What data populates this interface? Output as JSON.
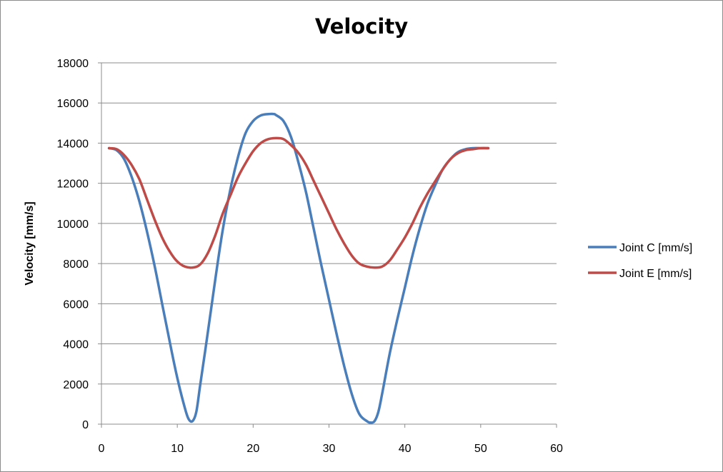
{
  "chart_data": {
    "type": "line",
    "title": "Velocity",
    "xlabel": "",
    "ylabel": "Velocity [mm/s]",
    "xlim": [
      0,
      60
    ],
    "ylim": [
      0,
      18000
    ],
    "x_ticks": [
      0,
      10,
      20,
      30,
      40,
      50,
      60
    ],
    "y_ticks": [
      0,
      2000,
      4000,
      6000,
      8000,
      10000,
      12000,
      14000,
      16000,
      18000
    ],
    "grid": "horizontal",
    "legend_position": "right",
    "series": [
      {
        "name": "Joint C [mm/s]",
        "color": "#4a7ebb",
        "x": [
          1,
          2,
          3,
          4,
          5,
          6,
          7,
          8,
          9,
          10,
          11,
          11.5,
          12,
          12.5,
          13,
          14,
          15,
          16,
          17,
          18,
          19,
          20,
          21,
          22,
          22.7,
          23,
          24,
          25,
          26,
          27,
          28,
          29,
          30,
          31,
          32,
          33,
          34,
          35,
          35.5,
          36,
          36.5,
          37,
          38,
          39,
          40,
          41,
          42,
          43,
          44,
          45,
          46,
          47,
          48,
          49,
          50,
          51
        ],
        "y": [
          13750,
          13650,
          13200,
          12300,
          11100,
          9600,
          7900,
          6000,
          4100,
          2300,
          800,
          250,
          150,
          600,
          1900,
          4500,
          7200,
          9700,
          11700,
          13300,
          14500,
          15100,
          15380,
          15450,
          15450,
          15400,
          15100,
          14300,
          13000,
          11500,
          9700,
          7900,
          6200,
          4500,
          2900,
          1500,
          500,
          150,
          80,
          150,
          600,
          1500,
          3500,
          5200,
          6800,
          8400,
          9800,
          11000,
          11900,
          12700,
          13200,
          13550,
          13700,
          13750,
          13750,
          13750
        ]
      },
      {
        "name": "Joint E [mm/s]",
        "color": "#be4b48",
        "x": [
          1,
          2,
          3,
          4,
          5,
          6,
          7,
          8,
          9,
          10,
          11,
          12,
          13,
          14,
          15,
          16,
          17,
          18,
          19,
          20,
          21,
          22,
          23,
          24,
          25,
          26,
          27,
          28,
          29,
          30,
          31,
          32,
          33,
          34,
          35,
          36,
          37,
          38,
          39,
          40,
          41,
          42,
          43,
          44,
          45,
          46,
          47,
          48,
          49,
          50,
          51
        ],
        "y": [
          13750,
          13700,
          13400,
          12900,
          12200,
          11200,
          10200,
          9300,
          8600,
          8100,
          7850,
          7800,
          7950,
          8500,
          9400,
          10500,
          11400,
          12300,
          13000,
          13600,
          14000,
          14200,
          14250,
          14200,
          13900,
          13500,
          12900,
          12100,
          11300,
          10500,
          9700,
          9000,
          8400,
          8000,
          7850,
          7800,
          7850,
          8150,
          8700,
          9300,
          10000,
          10800,
          11500,
          12100,
          12700,
          13200,
          13500,
          13650,
          13700,
          13750,
          13750
        ]
      }
    ]
  }
}
